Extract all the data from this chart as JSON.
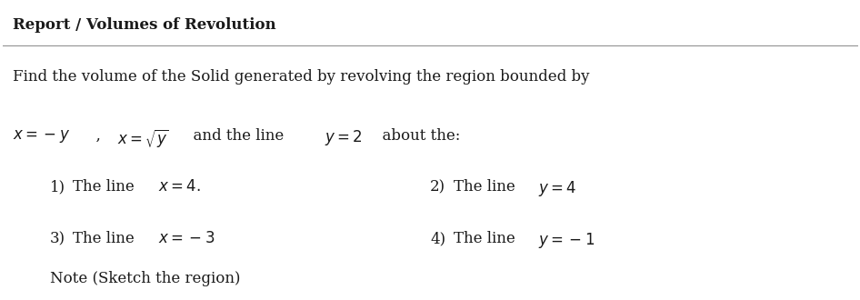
{
  "title": "Report / Volumes of Revolution",
  "background_color": "#ffffff",
  "text_color": "#1a1a1a",
  "body_text_line1": "Find the volume of the Solid generated by revolving the region bounded by",
  "items": [
    {
      "num": "1)",
      "text_plain": "The line ",
      "math": "x = 4.",
      "col": 0
    },
    {
      "num": "2)",
      "text_plain": "The line ",
      "math": "y = 4",
      "col": 1
    },
    {
      "num": "3)",
      "text_plain": "The line ",
      "math": "x = -3",
      "col": 0
    },
    {
      "num": "4)",
      "text_plain": "The line ",
      "math": "y = -1",
      "col": 1
    }
  ],
  "note_text": "Note (Sketch the region)",
  "fontsize_title": 12,
  "fontsize_body": 12,
  "fontsize_items": 12,
  "fontsize_note": 12
}
